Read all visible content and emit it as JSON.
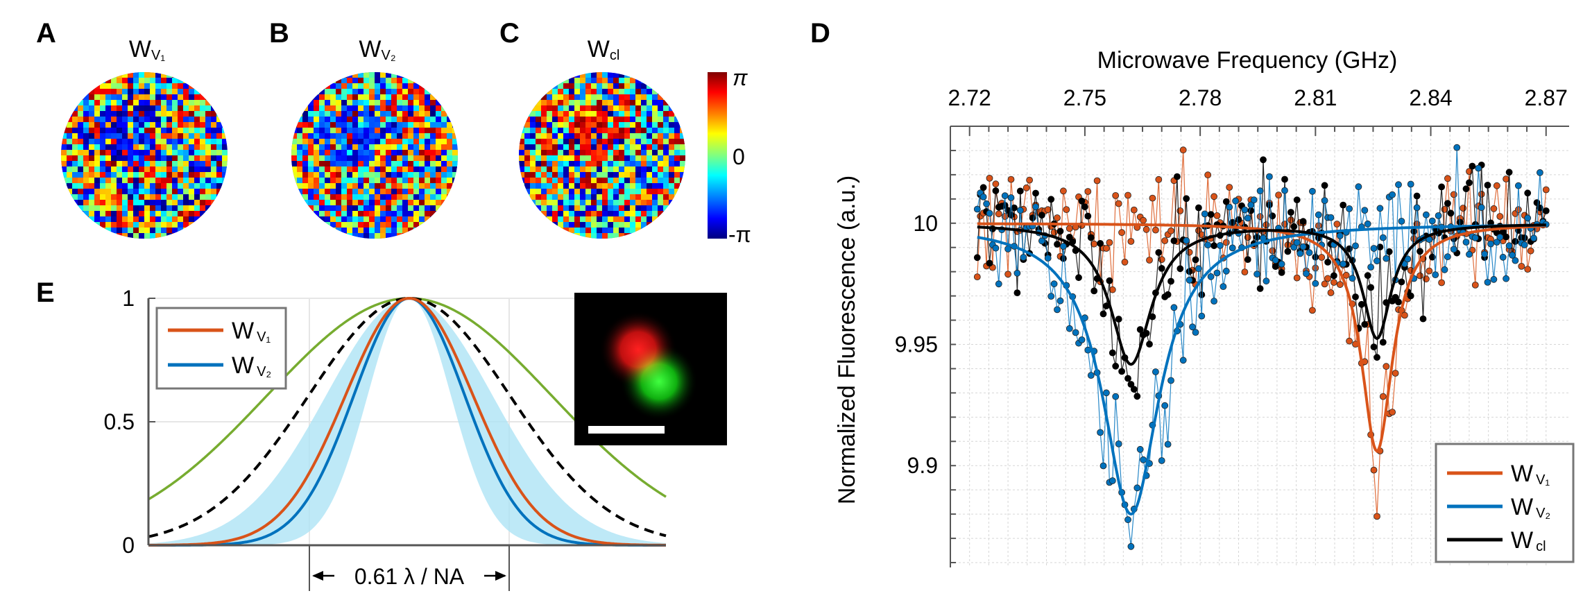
{
  "panels": {
    "a": {
      "letter": "A",
      "title": "W",
      "sub": "V₁"
    },
    "b": {
      "letter": "B",
      "title": "W",
      "sub": "V₂"
    },
    "c": {
      "letter": "C",
      "title": "W",
      "sub": "cl"
    },
    "d": {
      "letter": "D"
    },
    "e": {
      "letter": "E"
    }
  },
  "colorbar": {
    "top": "π",
    "mid": "0",
    "bottom": "-π"
  },
  "colors": {
    "v1": "#d95319",
    "v2": "#0072bd",
    "cl": "#000000",
    "green": "#77ac30",
    "shade": "#aee4f5"
  },
  "chart_data": [
    {
      "type": "line",
      "panel": "D",
      "title": "",
      "xlabel": "Microwave Frequency (GHz)",
      "ylabel": "Normalized Fluorescence (a.u.)",
      "xlim": [
        2.715,
        2.876
      ],
      "ylim": [
        9.858,
        10.04
      ],
      "xticks": [
        "2.72",
        "2.75",
        "2.78",
        "2.81",
        "2.84",
        "2.87"
      ],
      "yticks": [
        "9.9",
        "9.95",
        "10"
      ],
      "grid": true,
      "legend_position": "bottom-right",
      "series": [
        {
          "name": "W",
          "sub": "V₁",
          "key": "v1",
          "fit": {
            "baseline": 10.0,
            "center": 2.826,
            "depth": 0.094,
            "width": 0.005
          }
        },
        {
          "name": "W",
          "sub": "V₂",
          "key": "v2",
          "fit": {
            "baseline": 10.0,
            "center": 2.762,
            "depth": 0.12,
            "width": 0.009
          }
        },
        {
          "name": "W",
          "sub": "cl",
          "key": "cl",
          "fit": {
            "baseline": 10.0,
            "centers": [
              2.762,
              2.826
            ],
            "depths": [
              0.058,
              0.047
            ],
            "widths": [
              0.0065,
              0.0045
            ]
          }
        }
      ],
      "scatter_noise": 0.012,
      "x_range": [
        2.722,
        2.87
      ]
    },
    {
      "type": "line",
      "panel": "E",
      "title": "",
      "xlabel": "",
      "ylabel": "",
      "ylim": [
        0,
        1
      ],
      "yticks": [
        "0",
        "0.5",
        "1"
      ],
      "grid": true,
      "legend_position": "top-left",
      "series": [
        {
          "name": "W",
          "sub": "V₁",
          "key": "v1",
          "relative_width": 0.92
        },
        {
          "name": "W",
          "sub": "V₂",
          "key": "v2",
          "relative_width": 0.8
        },
        {
          "name": "dashed",
          "key": "cl",
          "relative_width": 1.45,
          "style": "dashed"
        },
        {
          "name": "green",
          "key": "green",
          "relative_width": 2.05
        }
      ],
      "band": {
        "lower_relative_width": 0.6,
        "upper_relative_width": 1.2
      },
      "annotation": "0.61 λ / NA"
    }
  ]
}
